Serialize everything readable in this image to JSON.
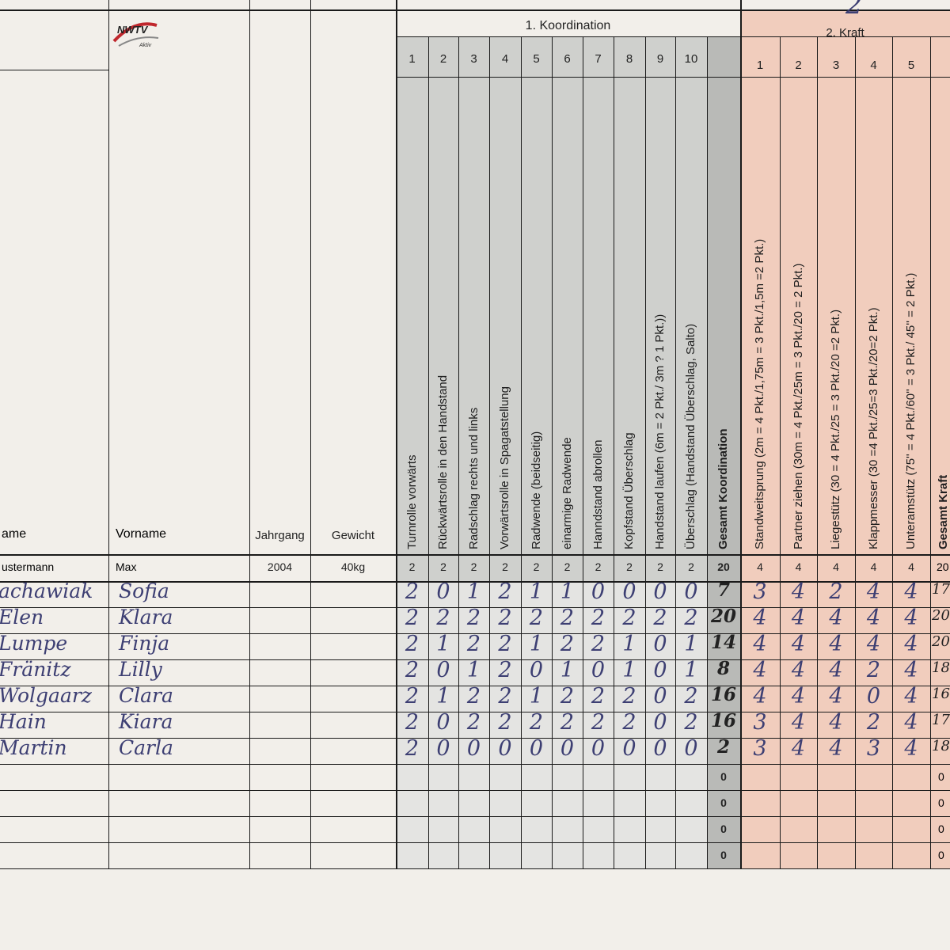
{
  "header": {
    "top_fragment": "2",
    "logo_text": "NWTV",
    "logo_sub": "Aktiv",
    "section1_title": "1. Koordination",
    "section2_title": "2. Kraft"
  },
  "columns": {
    "name": "ame",
    "vorname": "Vorname",
    "jahrgang": "Jahrgang",
    "gewicht": "Gewicht",
    "koordination_numbers": [
      "1",
      "2",
      "3",
      "4",
      "5",
      "6",
      "7",
      "8",
      "9",
      "10"
    ],
    "koordination_labels": [
      "Turnrolle vorwärts",
      "Rückwärtsrolle in den Handstand",
      "Radschlag rechts und links",
      "Vorwärtsrolle in Spagatstellung",
      "Radwende (beidseitig)",
      "einarmige Radwende",
      "Hanndstand abrollen",
      "Kopfstand Überschlag",
      "Handstand laufen (6m = 2 Pkt./ 3m ? 1 Pkt.))",
      "Überschlag (Handstand Überschlag, Salto)"
    ],
    "gesamt_koordination": "Gesamt Koordination",
    "kraft_numbers": [
      "1",
      "2",
      "3",
      "4",
      "5"
    ],
    "kraft_labels": [
      "Standweitsprung (2m = 4 Pkt./1,75m = 3 Pkt./1,5m =2 Pkt.)",
      "Partner ziehen (30m = 4 Pkt./25m = 3 Pkt./20 = 2 Pkt.)",
      "Liegestütz (30 = 4 Pkt./25 = 3 Pkt./20 =2 Pkt.)",
      "Klappmesser (30 =4 Pkt./25=3 Pkt./20=2 Pkt.)",
      "Unteramstütz (75'' = 4 Pkt./60'' = 3 Pkt./ 45'' = 2 Pkt.)"
    ],
    "gesamt_kraft": "Gesamt Kraft"
  },
  "example_row": {
    "name": "ustermann",
    "vorname": "Max",
    "jahrgang": "2004",
    "gewicht": "40kg",
    "koordination": [
      "2",
      "2",
      "2",
      "2",
      "2",
      "2",
      "2",
      "2",
      "2",
      "2"
    ],
    "gesamt_koordination": "20",
    "kraft": [
      "4",
      "4",
      "4",
      "4",
      "4"
    ],
    "gesamt_kraft": "20"
  },
  "athletes": [
    {
      "name": "achawiak",
      "vorname": "Sofia",
      "koordination": [
        "2",
        "0",
        "1",
        "2",
        "1",
        "1",
        "0",
        "0",
        "0",
        "0"
      ],
      "gesamt_koordination": "7",
      "kraft": [
        "3",
        "4",
        "2",
        "4",
        "4"
      ],
      "gesamt_kraft": "17"
    },
    {
      "name": "Elen",
      "vorname": "Klara",
      "koordination": [
        "2",
        "2",
        "2",
        "2",
        "2",
        "2",
        "2",
        "2",
        "2",
        "2"
      ],
      "gesamt_koordination": "20",
      "kraft": [
        "4",
        "4",
        "4",
        "4",
        "4"
      ],
      "gesamt_kraft": "20"
    },
    {
      "name": "Lumpe",
      "vorname": "Finja",
      "koordination": [
        "2",
        "1",
        "2",
        "2",
        "1",
        "2",
        "2",
        "1",
        "0",
        "1"
      ],
      "gesamt_koordination": "14",
      "kraft": [
        "4",
        "4",
        "4",
        "4",
        "4"
      ],
      "gesamt_kraft": "20"
    },
    {
      "name": "Fränitz",
      "vorname": "Lilly",
      "koordination": [
        "2",
        "0",
        "1",
        "2",
        "0",
        "1",
        "0",
        "1",
        "0",
        "1"
      ],
      "gesamt_koordination": "8",
      "kraft": [
        "4",
        "4",
        "4",
        "2",
        "4"
      ],
      "gesamt_kraft": "18"
    },
    {
      "name": "Wolgaarz",
      "vorname": "Clara",
      "koordination": [
        "2",
        "1",
        "2",
        "2",
        "1",
        "2",
        "2",
        "2",
        "0",
        "2"
      ],
      "gesamt_koordination": "16",
      "kraft": [
        "4",
        "4",
        "4",
        "0",
        "4"
      ],
      "gesamt_kraft": "16"
    },
    {
      "name": "Hain",
      "vorname": "Kiara",
      "koordination": [
        "2",
        "0",
        "2",
        "2",
        "2",
        "2",
        "2",
        "2",
        "0",
        "2"
      ],
      "gesamt_koordination": "16",
      "kraft": [
        "3",
        "4",
        "4",
        "2",
        "4"
      ],
      "gesamt_kraft": "17"
    },
    {
      "name": "Martin",
      "vorname": "Carla",
      "koordination": [
        "2",
        "0",
        "0",
        "0",
        "0",
        "0",
        "0",
        "0",
        "0",
        "0"
      ],
      "gesamt_koordination": "2",
      "kraft": [
        "3",
        "4",
        "4",
        "3",
        "4"
      ],
      "gesamt_kraft": "18"
    }
  ],
  "empty_totals": [
    "0",
    "0",
    "0",
    "0"
  ],
  "colors": {
    "paper": "#f2efea",
    "koordination_fill": "#cfd0cd",
    "gesamt_fill": "#b9bab7",
    "kraft_fill": "#f1cdbd",
    "ink": "#3d3f73",
    "grid": "#1a1a1a"
  }
}
